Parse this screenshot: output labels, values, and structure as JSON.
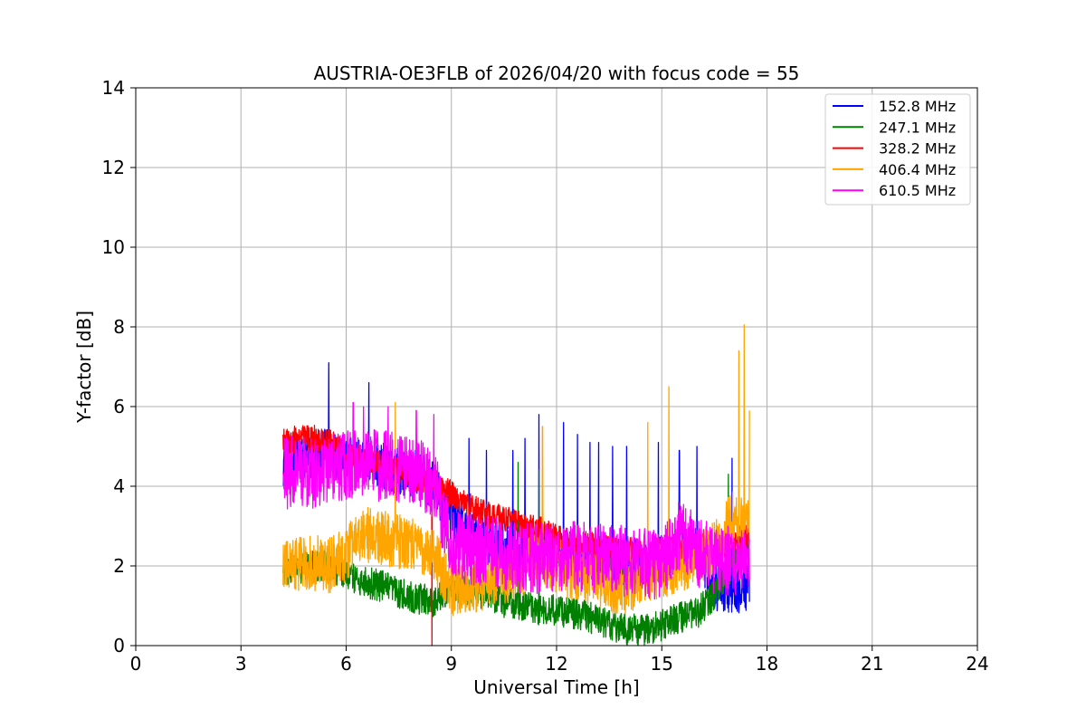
{
  "chart_data": {
    "type": "line",
    "title": "AUSTRIA-OE3FLB of 2026/04/20 with focus code = 55",
    "xlabel": "Universal Time [h]",
    "ylabel": "Y-factor [dB]",
    "xlim": [
      0,
      24
    ],
    "ylim": [
      0,
      14
    ],
    "xticks": [
      "0",
      "3",
      "6",
      "9",
      "12",
      "15",
      "18",
      "21",
      "24"
    ],
    "yticks": [
      "0",
      "2",
      "4",
      "6",
      "8",
      "10",
      "12",
      "14"
    ],
    "grid": true,
    "legend_position": "top-right",
    "colors": {
      "blue": "#0000ff",
      "green": "#008000",
      "red": "#ff0000",
      "orange": "#ffa500",
      "magenta": "#ff00ff"
    },
    "series": [
      {
        "name": "152.8 MHz",
        "color": "#0000ff",
        "points": [
          [
            4.2,
            4.6
          ],
          [
            5.0,
            4.7
          ],
          [
            5.5,
            4.9
          ],
          [
            6.0,
            4.6
          ],
          [
            6.5,
            4.7
          ],
          [
            7.0,
            4.5
          ],
          [
            7.5,
            4.4
          ],
          [
            8.0,
            4.3
          ],
          [
            8.5,
            4.0
          ],
          [
            9.0,
            3.2
          ],
          [
            9.5,
            2.8
          ],
          [
            10.0,
            2.7
          ],
          [
            10.5,
            2.5
          ],
          [
            11.0,
            2.4
          ],
          [
            11.5,
            2.4
          ],
          [
            12.0,
            2.3
          ],
          [
            12.5,
            2.2
          ],
          [
            13.0,
            2.2
          ],
          [
            13.5,
            2.2
          ],
          [
            14.0,
            2.1
          ],
          [
            14.5,
            2.1
          ],
          [
            15.0,
            2.2
          ],
          [
            15.5,
            2.3
          ],
          [
            16.0,
            2.5
          ],
          [
            16.5,
            1.5
          ],
          [
            17.0,
            1.3
          ],
          [
            17.5,
            1.5
          ]
        ],
        "spikes": [
          [
            5.5,
            7.1
          ],
          [
            6.65,
            6.6
          ],
          [
            9.5,
            5.2
          ],
          [
            10.0,
            4.9
          ],
          [
            10.75,
            4.9
          ],
          [
            11.1,
            5.2
          ],
          [
            11.5,
            5.8
          ],
          [
            12.2,
            5.6
          ],
          [
            12.6,
            5.3
          ],
          [
            12.95,
            5.1
          ],
          [
            13.2,
            5.1
          ],
          [
            13.6,
            5.0
          ],
          [
            14.0,
            5.0
          ],
          [
            14.9,
            5.1
          ],
          [
            15.5,
            4.9
          ],
          [
            16.0,
            5.0
          ],
          [
            17.0,
            4.7
          ]
        ],
        "band": 0.6
      },
      {
        "name": "247.1 MHz",
        "color": "#008000",
        "points": [
          [
            4.2,
            1.9
          ],
          [
            5.0,
            2.0
          ],
          [
            5.5,
            2.0
          ],
          [
            6.0,
            1.8
          ],
          [
            6.5,
            1.6
          ],
          [
            7.0,
            1.5
          ],
          [
            7.5,
            1.3
          ],
          [
            8.0,
            1.2
          ],
          [
            8.5,
            1.1
          ],
          [
            9.0,
            1.5
          ],
          [
            9.5,
            1.4
          ],
          [
            10.0,
            1.3
          ],
          [
            10.5,
            1.1
          ],
          [
            11.0,
            1.0
          ],
          [
            11.5,
            0.9
          ],
          [
            12.0,
            0.9
          ],
          [
            12.5,
            0.8
          ],
          [
            13.0,
            0.7
          ],
          [
            13.5,
            0.5
          ],
          [
            14.0,
            0.4
          ],
          [
            14.5,
            0.4
          ],
          [
            15.0,
            0.5
          ],
          [
            15.5,
            0.7
          ],
          [
            16.0,
            0.8
          ],
          [
            16.5,
            1.3
          ],
          [
            17.0,
            2.0
          ],
          [
            17.5,
            2.4
          ]
        ],
        "spikes": [
          [
            10.9,
            4.6
          ],
          [
            11.5,
            4.4
          ],
          [
            16.9,
            4.3
          ]
        ],
        "band": 0.4
      },
      {
        "name": "328.2 MHz",
        "color": "#ff0000",
        "points": [
          [
            4.2,
            5.1
          ],
          [
            4.6,
            5.2
          ],
          [
            5.0,
            5.2
          ],
          [
            5.5,
            5.1
          ],
          [
            6.0,
            4.8
          ],
          [
            6.5,
            4.7
          ],
          [
            7.0,
            4.5
          ],
          [
            7.5,
            4.4
          ],
          [
            8.0,
            4.2
          ],
          [
            8.5,
            4.1
          ],
          [
            9.0,
            3.8
          ],
          [
            9.5,
            3.5
          ],
          [
            10.0,
            3.3
          ],
          [
            10.5,
            3.2
          ],
          [
            11.0,
            3.0
          ],
          [
            11.5,
            2.9
          ],
          [
            12.0,
            2.7
          ],
          [
            12.5,
            2.6
          ],
          [
            13.0,
            2.5
          ],
          [
            13.5,
            2.4
          ],
          [
            14.0,
            2.4
          ],
          [
            14.5,
            2.3
          ],
          [
            15.0,
            2.4
          ],
          [
            15.5,
            2.5
          ],
          [
            16.0,
            2.5
          ],
          [
            16.5,
            2.4
          ],
          [
            17.0,
            2.6
          ],
          [
            17.5,
            2.8
          ]
        ],
        "spikes": [
          [
            8.45,
            0.0
          ]
        ],
        "band": 0.35
      },
      {
        "name": "406.4 MHz",
        "color": "#ffa500",
        "points": [
          [
            4.2,
            2.0
          ],
          [
            5.0,
            2.1
          ],
          [
            5.5,
            2.0
          ],
          [
            6.0,
            2.3
          ],
          [
            6.5,
            2.8
          ],
          [
            7.0,
            2.7
          ],
          [
            7.5,
            2.6
          ],
          [
            8.0,
            2.5
          ],
          [
            8.5,
            2.3
          ],
          [
            9.0,
            1.4
          ],
          [
            9.5,
            1.5
          ],
          [
            10.0,
            1.6
          ],
          [
            10.5,
            1.7
          ],
          [
            11.0,
            1.9
          ],
          [
            11.5,
            2.2
          ],
          [
            12.0,
            2.0
          ],
          [
            12.5,
            1.8
          ],
          [
            13.0,
            1.7
          ],
          [
            13.5,
            1.5
          ],
          [
            14.0,
            1.5
          ],
          [
            14.5,
            1.7
          ],
          [
            15.0,
            1.9
          ],
          [
            15.5,
            2.0
          ],
          [
            16.0,
            2.2
          ],
          [
            16.5,
            2.4
          ],
          [
            17.0,
            3.2
          ],
          [
            17.5,
            3.0
          ]
        ],
        "spikes": [
          [
            7.4,
            6.1
          ],
          [
            11.6,
            5.5
          ],
          [
            14.6,
            5.6
          ],
          [
            15.2,
            6.5
          ],
          [
            17.2,
            7.4
          ],
          [
            17.35,
            8.05
          ],
          [
            17.5,
            5.9
          ]
        ],
        "band": 0.7
      },
      {
        "name": "610.5 MHz",
        "color": "#ff00ff",
        "points": [
          [
            4.2,
            4.3
          ],
          [
            4.6,
            4.4
          ],
          [
            5.0,
            4.3
          ],
          [
            5.5,
            4.5
          ],
          [
            6.0,
            4.5
          ],
          [
            6.5,
            4.6
          ],
          [
            7.0,
            4.5
          ],
          [
            7.5,
            4.5
          ],
          [
            8.0,
            4.3
          ],
          [
            8.5,
            4.1
          ],
          [
            9.0,
            2.5
          ],
          [
            9.5,
            2.4
          ],
          [
            10.0,
            2.4
          ],
          [
            10.5,
            2.3
          ],
          [
            11.0,
            2.2
          ],
          [
            11.5,
            2.2
          ],
          [
            12.0,
            2.2
          ],
          [
            12.5,
            2.3
          ],
          [
            13.0,
            2.2
          ],
          [
            13.5,
            2.2
          ],
          [
            14.0,
            2.1
          ],
          [
            14.5,
            2.1
          ],
          [
            15.0,
            2.0
          ],
          [
            15.5,
            2.8
          ],
          [
            16.0,
            2.4
          ],
          [
            16.5,
            2.1
          ],
          [
            17.0,
            2.1
          ],
          [
            17.5,
            2.1
          ]
        ],
        "spikes": [
          [
            6.2,
            6.1
          ],
          [
            6.5,
            6.0
          ],
          [
            7.2,
            6.0
          ],
          [
            8.0,
            5.9
          ],
          [
            8.5,
            5.8
          ]
        ],
        "band": 0.9
      }
    ]
  }
}
